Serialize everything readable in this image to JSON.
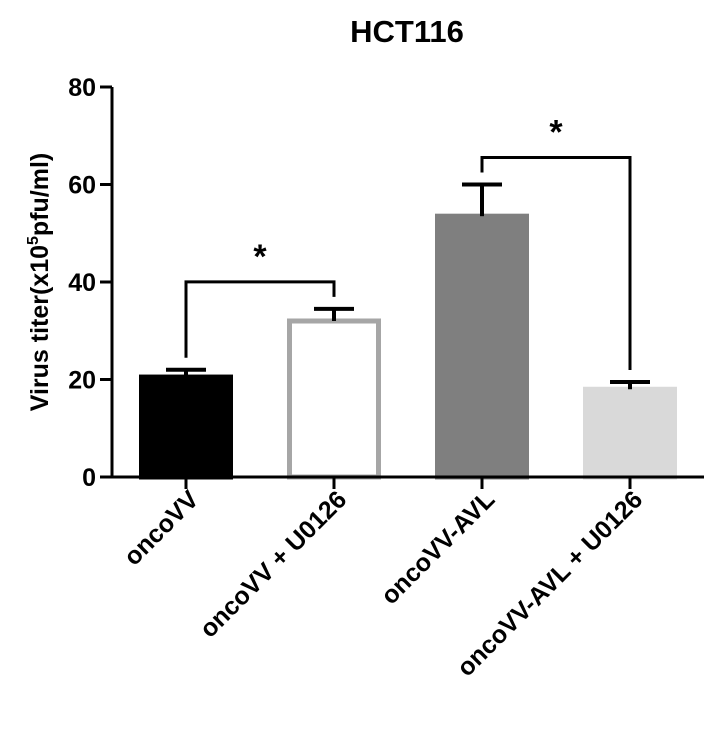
{
  "chart_data": {
    "type": "bar",
    "title": "HCT116",
    "xlabel": "",
    "ylabel": {
      "prefix": "Virus titer(x10",
      "superscript": "5",
      "suffix": "pfu/ml)"
    },
    "ylim": [
      0,
      80
    ],
    "yticks": [
      0,
      20,
      40,
      60,
      80
    ],
    "grid": false,
    "categories": [
      "oncoVV",
      "oncoVV + U0126",
      "oncoVV-AVL",
      "oncoVV-AVL + U0126"
    ],
    "values": [
      20.5,
      32,
      53.5,
      18
    ],
    "errors": [
      1.5,
      2.5,
      6.5,
      1.5
    ],
    "bar_styles": [
      {
        "fill": "#000000",
        "stroke": "#000000"
      },
      {
        "fill": "#ffffff",
        "stroke": "#a6a6a6"
      },
      {
        "fill": "#7f7f7f",
        "stroke": "#7f7f7f"
      },
      {
        "fill": "#d9d9d9",
        "stroke": "#d9d9d9"
      }
    ],
    "significance": [
      {
        "from": 0,
        "to": 1,
        "label": "*"
      },
      {
        "from": 2,
        "to": 3,
        "label": "*"
      }
    ]
  }
}
